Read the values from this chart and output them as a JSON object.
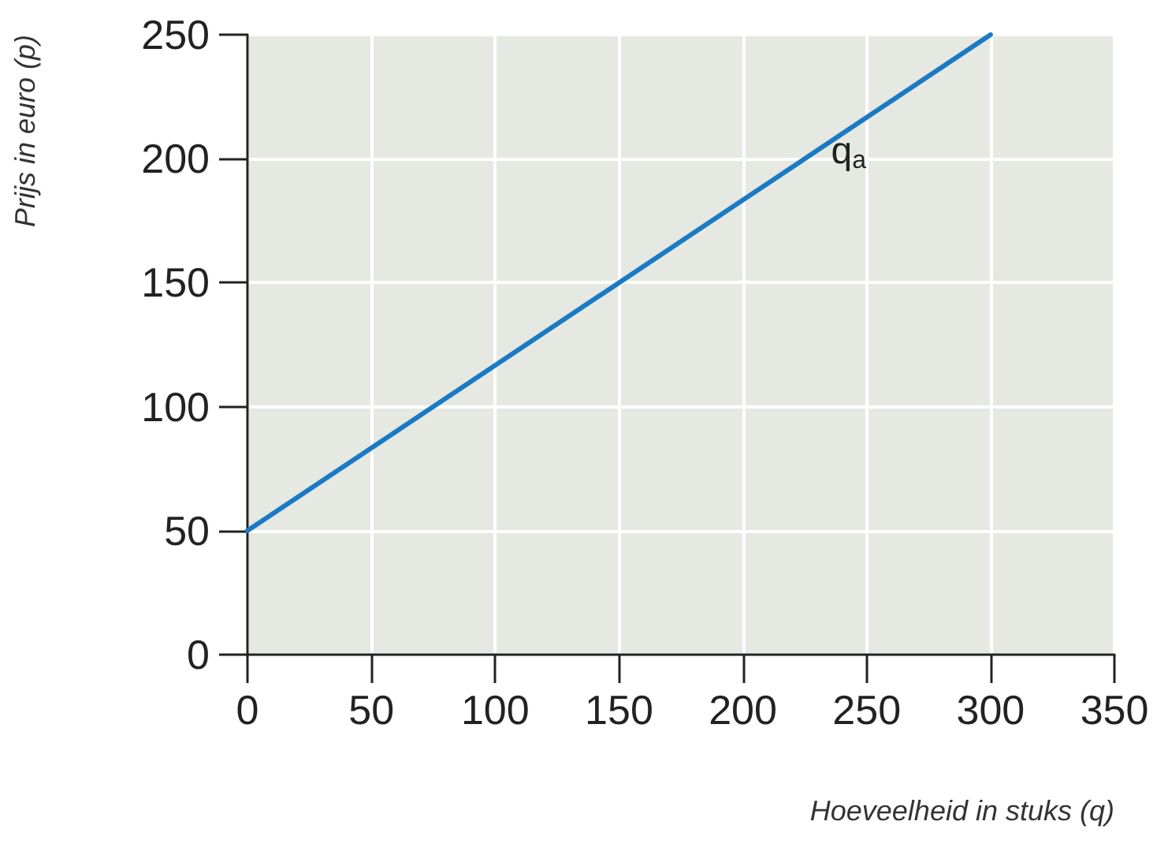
{
  "chart_data": {
    "type": "line",
    "xlabel": "Hoeveelheid in stuks (q)",
    "ylabel": "Prijs in euro (p)",
    "x": [
      0,
      300
    ],
    "series": [
      {
        "name": "q$_{a}$",
        "color": "#1a7ac4",
        "values": [
          50,
          250
        ]
      }
    ],
    "xlim": [
      0,
      350
    ],
    "xticks": [
      0,
      50,
      100,
      150,
      200,
      250,
      300,
      350
    ],
    "ylim": [
      0,
      250
    ],
    "yticks": [
      0,
      50,
      100,
      150,
      200,
      250
    ],
    "grid": true,
    "legend": false,
    "marker": "none",
    "line_style": "solid"
  }
}
